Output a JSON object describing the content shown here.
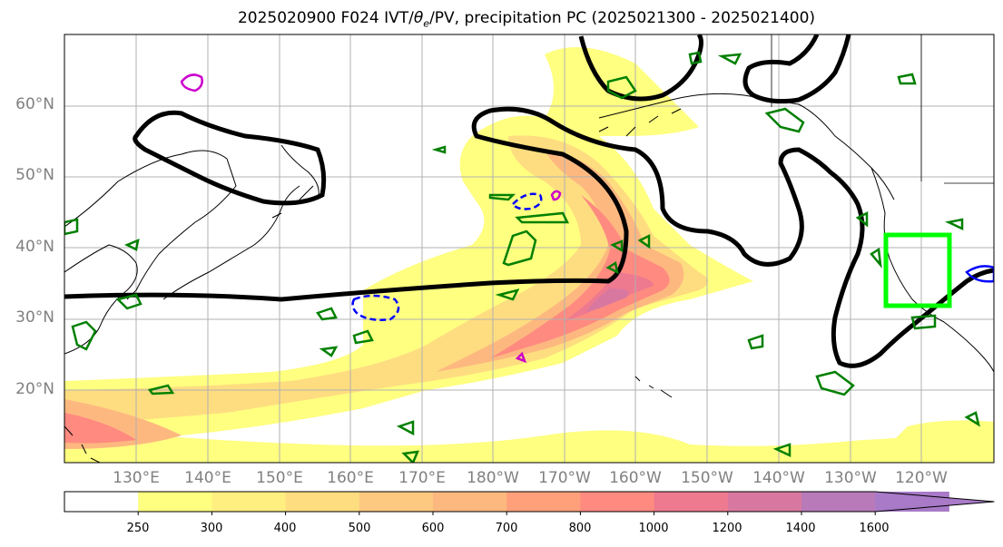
{
  "title_text": "2025020900 F024 IVT/",
  "title_theta": "θ",
  "title_sub": "e",
  "title_rest": "/PV, precipitation PC (2025021300 - 2025021400)",
  "lat_labels": [
    "60°N",
    "50°N",
    "40°N",
    "30°N",
    "20°N"
  ],
  "lon_labels": [
    "130°E",
    "140°E",
    "150°E",
    "160°E",
    "170°E",
    "180°W",
    "170°W",
    "160°W",
    "150°W",
    "140°W",
    "130°W",
    "120°W"
  ],
  "colorbar": {
    "levels": [
      "250",
      "300",
      "400",
      "500",
      "600",
      "700",
      "800",
      "1000",
      "1200",
      "1400",
      "1600"
    ],
    "colors": [
      "#ffffff",
      "#ffff80",
      "#ffee80",
      "#fedd80",
      "#fdc880",
      "#fdb880",
      "#ffa07a",
      "#ff8a80",
      "#ee7a90",
      "#d878a0",
      "#b87ab8",
      "#a87ac8"
    ]
  },
  "map": {
    "contour_color": "#000000",
    "precip_plus_color": "#008000",
    "precip_minus_color": "#0000ff",
    "pv_color": "#cc00cc",
    "region_box_color": "#00ff00"
  }
}
